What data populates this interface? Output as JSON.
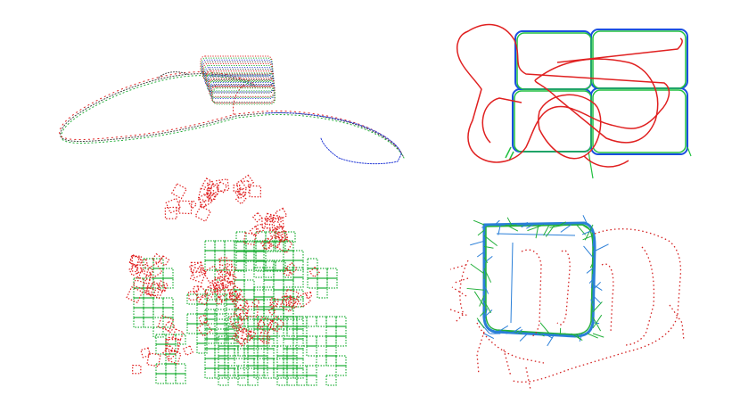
{
  "figure": {
    "background": "#ffffff",
    "panels": [
      {
        "id": "panel-tl",
        "colors": {
          "red": "#e02020",
          "green": "#22b03a",
          "blue": "#2a3fd8",
          "gray": "#444444"
        }
      },
      {
        "id": "panel-tr",
        "colors": {
          "red": "#e02020",
          "green": "#22c040",
          "blue": "#1a4fe0"
        }
      },
      {
        "id": "panel-bl",
        "colors": {
          "red": "#e02020",
          "green": "#22b03a"
        }
      },
      {
        "id": "panel-br",
        "colors": {
          "red": "#d42020",
          "green": "#22b03a",
          "blue": "#2a7fd8"
        }
      }
    ]
  }
}
